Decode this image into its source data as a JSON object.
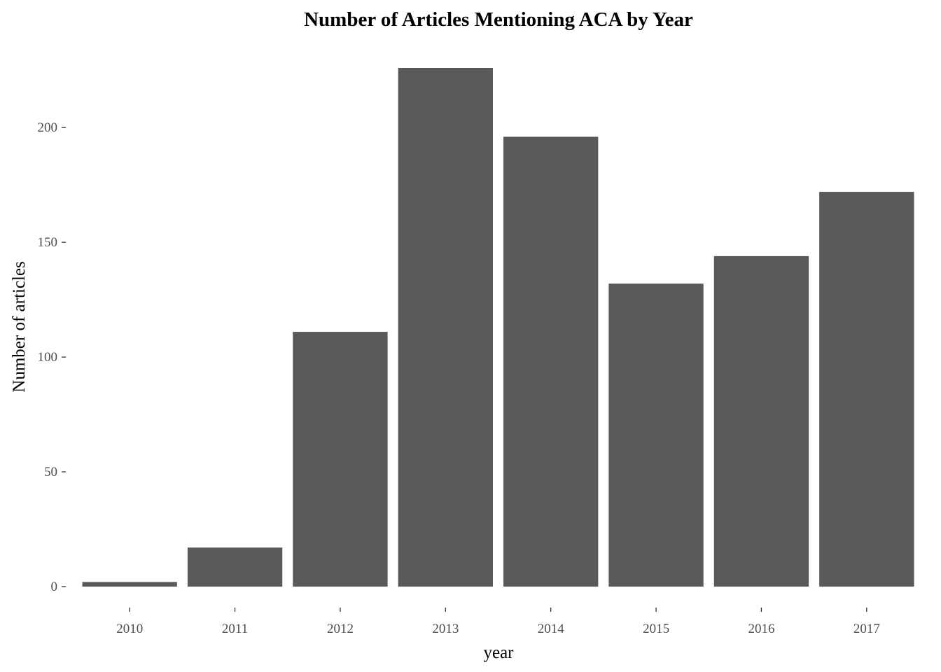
{
  "chart_data": {
    "type": "bar",
    "title": "Number of Articles Mentioning ACA by Year",
    "xlabel": "year",
    "ylabel": "Number of articles",
    "categories": [
      "2010",
      "2011",
      "2012",
      "2013",
      "2014",
      "2015",
      "2016",
      "2017"
    ],
    "values": [
      2,
      17,
      111,
      226,
      196,
      132,
      144,
      172
    ],
    "yticks": [
      0,
      50,
      100,
      150,
      200
    ],
    "ylim": [
      0,
      226
    ],
    "grid": false,
    "legend": "none",
    "bar_color": "#595959"
  }
}
